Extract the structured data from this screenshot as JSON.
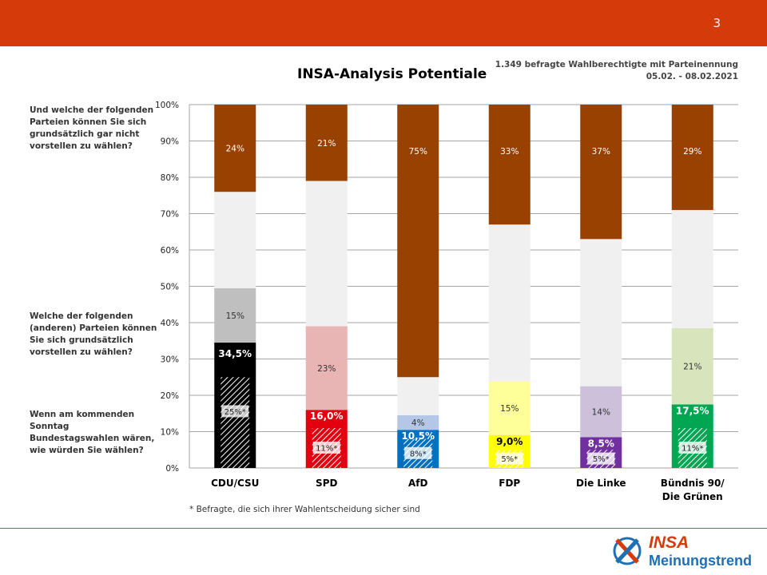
{
  "header": {
    "page_number": "3"
  },
  "title": "INSA-Analysis Potentiale",
  "meta": {
    "line1": "1.349 befragte Wahlberechtigte mit Parteinennung",
    "line2": "05.02. - 08.02.2021"
  },
  "questions": {
    "q_never": "Und welche der folgenden Parteien können Sie sich grundsätzlich  gar nicht vorstellen zu wählen?",
    "q_potential": "Welche der folgenden (anderen) Parteien können Sie sich  grundsätzlich vorstellen zu wählen?",
    "q_vote": "Wenn am kommenden Sonntag Bundestagswahlen wären, wie würden Sie wählen?"
  },
  "footnote": "* Befragte, die sich ihrer Wahlentscheidung sicher sind",
  "logo": {
    "brand": "INSA",
    "subtitle": "Meinungstrend"
  },
  "colors": {
    "header_bar": "#d43a0a",
    "never": "#994100",
    "undecided": "#f0f0f0",
    "hatch": "#ffffff"
  },
  "chart_data": {
    "type": "bar",
    "stacked": true,
    "ylim": [
      0,
      100
    ],
    "yticks": [
      "0%",
      "10%",
      "20%",
      "30%",
      "40%",
      "50%",
      "60%",
      "70%",
      "80%",
      "90%",
      "100%"
    ],
    "grid": true,
    "categories": [
      [
        "CDU/CSU"
      ],
      [
        "SPD"
      ],
      [
        "AfD"
      ],
      [
        "FDP"
      ],
      [
        "Die Linke"
      ],
      [
        "Bündnis 90/",
        "Die Grünen"
      ]
    ],
    "vote": [
      34.5,
      16.0,
      10.5,
      9.0,
      8.5,
      17.5
    ],
    "vote_labels": [
      "34,5%",
      "16,0%",
      "10,5%",
      "9,0%",
      "8,5%",
      "17,5%"
    ],
    "sure": [
      25,
      11,
      8,
      5,
      5,
      11
    ],
    "sure_labels": [
      "25%*",
      "11%*",
      "8%*",
      "5%*",
      "5%*",
      "11%*"
    ],
    "potential": [
      15,
      23,
      4,
      15,
      14,
      21
    ],
    "potential_labels": [
      "15%",
      "23%",
      "4%",
      "15%",
      "14%",
      "21%"
    ],
    "never": [
      24,
      21,
      75,
      33,
      37,
      29
    ],
    "never_labels": [
      "24%",
      "21%",
      "75%",
      "33%",
      "37%",
      "29%"
    ],
    "party_colors": [
      "#000000",
      "#e3000f",
      "#0070c0",
      "#ffff00",
      "#7030a0",
      "#00a651"
    ],
    "potential_colors": [
      "#bfbfbf",
      "#e8b4b4",
      "#b4c7e7",
      "#ffff99",
      "#ccc0da",
      "#d8e4bc"
    ],
    "vote_label_colors": [
      "#ffffff",
      "#ffffff",
      "#ffffff",
      "#000000",
      "#ffffff",
      "#ffffff"
    ]
  }
}
